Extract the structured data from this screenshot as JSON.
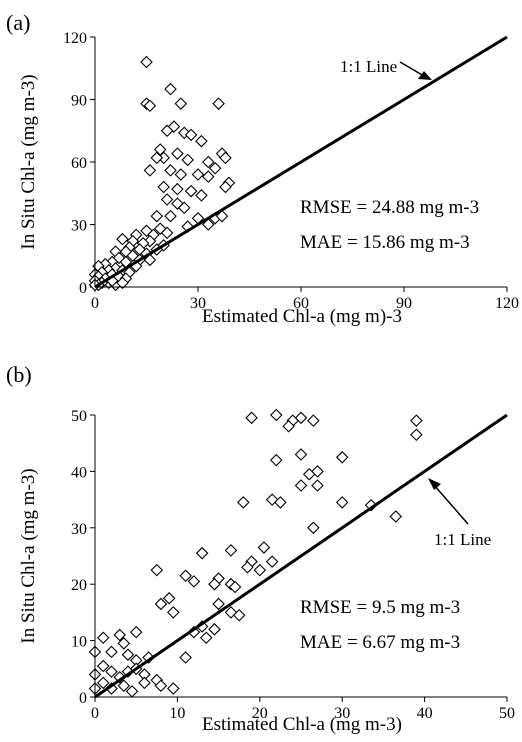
{
  "chart_data": [
    {
      "type": "scatter",
      "panel_label": "(a)",
      "xlabel": "Estimated Chl-a (mg m)-3",
      "ylabel": "In Situ Chl-a (mg m-3)",
      "xlim": [
        0,
        120
      ],
      "ylim": [
        0,
        120
      ],
      "xticks": [
        "0",
        "30",
        "60",
        "90",
        "120"
      ],
      "yticks": [
        "0",
        "30",
        "60",
        "90",
        "120"
      ],
      "grid": false,
      "reference_line": {
        "label": "1:1 Line",
        "from": [
          0,
          0
        ],
        "to": [
          120,
          120
        ]
      },
      "annotations": [
        "RMSE = 24.88 mg m-3",
        "MAE = 15.86 mg m-3"
      ],
      "marker": "diamond",
      "points": [
        [
          15,
          108
        ],
        [
          22,
          95
        ],
        [
          15,
          88
        ],
        [
          16,
          87
        ],
        [
          25,
          88
        ],
        [
          36,
          88
        ],
        [
          23,
          77
        ],
        [
          21,
          75
        ],
        [
          26,
          74
        ],
        [
          28,
          73
        ],
        [
          31,
          70
        ],
        [
          19,
          66
        ],
        [
          24,
          64
        ],
        [
          20,
          62
        ],
        [
          18,
          62
        ],
        [
          27,
          61
        ],
        [
          33,
          60
        ],
        [
          37,
          64
        ],
        [
          38,
          62
        ],
        [
          35,
          57
        ],
        [
          16,
          56
        ],
        [
          22,
          56
        ],
        [
          25,
          54
        ],
        [
          30,
          54
        ],
        [
          33,
          53
        ],
        [
          39,
          50
        ],
        [
          38,
          48
        ],
        [
          20,
          48
        ],
        [
          24,
          47
        ],
        [
          28,
          46
        ],
        [
          31,
          44
        ],
        [
          21,
          42
        ],
        [
          24,
          40
        ],
        [
          26,
          38
        ],
        [
          35,
          33
        ],
        [
          37,
          34
        ],
        [
          18,
          34
        ],
        [
          22,
          34
        ],
        [
          30,
          33
        ],
        [
          27,
          29
        ],
        [
          33,
          30
        ],
        [
          19,
          28
        ],
        [
          15,
          27
        ],
        [
          21,
          26
        ],
        [
          12,
          25
        ],
        [
          17,
          25
        ],
        [
          8,
          23
        ],
        [
          11,
          22
        ],
        [
          16,
          22
        ],
        [
          14,
          21
        ],
        [
          20,
          20
        ],
        [
          10,
          19
        ],
        [
          13,
          18
        ],
        [
          9,
          17
        ],
        [
          6,
          17
        ],
        [
          18,
          18
        ],
        [
          15,
          16
        ],
        [
          11,
          15
        ],
        [
          7,
          14
        ],
        [
          13,
          13
        ],
        [
          16,
          13
        ],
        [
          5,
          12
        ],
        [
          9,
          12
        ],
        [
          3,
          11
        ],
        [
          1,
          10
        ],
        [
          12,
          10
        ],
        [
          6,
          9
        ],
        [
          8,
          8
        ],
        [
          4,
          8
        ],
        [
          10,
          7
        ],
        [
          2,
          7
        ],
        [
          5,
          6
        ],
        [
          0,
          6
        ],
        [
          7,
          5
        ],
        [
          1,
          5
        ],
        [
          3,
          4
        ],
        [
          9,
          4
        ],
        [
          0,
          3
        ],
        [
          4,
          2
        ],
        [
          2,
          2
        ],
        [
          6,
          1
        ],
        [
          1,
          1
        ],
        [
          0,
          1
        ],
        [
          5,
          3
        ],
        [
          8,
          2
        ]
      ]
    },
    {
      "type": "scatter",
      "panel_label": "(b)",
      "xlabel": "Estimated Chl-a (mg m-3)",
      "ylabel": "In Situ Chl-a (mg m-3)",
      "xlim": [
        0,
        50
      ],
      "ylim": [
        0,
        50
      ],
      "xticks": [
        "0",
        "10",
        "20",
        "30",
        "40",
        "50"
      ],
      "yticks": [
        "0",
        "10",
        "20",
        "30",
        "40",
        "50"
      ],
      "grid": false,
      "reference_line": {
        "label": "1:1 Line",
        "from": [
          0,
          0
        ],
        "to": [
          50,
          50
        ]
      },
      "annotations": [
        "RMSE = 9.5 mg m-3",
        "MAE = 6.67 mg m-3"
      ],
      "marker": "diamond",
      "points": [
        [
          19,
          49.5
        ],
        [
          22,
          50
        ],
        [
          24,
          49
        ],
        [
          25,
          49.5
        ],
        [
          26.5,
          49
        ],
        [
          39,
          49
        ],
        [
          39,
          46.5
        ],
        [
          23.5,
          48
        ],
        [
          25,
          43
        ],
        [
          22,
          42
        ],
        [
          30,
          42.5
        ],
        [
          26,
          39.5
        ],
        [
          27,
          40
        ],
        [
          25,
          37.5
        ],
        [
          27,
          37.5
        ],
        [
          21.5,
          35
        ],
        [
          22.5,
          34.5
        ],
        [
          18,
          34.5
        ],
        [
          30,
          34.5
        ],
        [
          33.5,
          34
        ],
        [
          36.5,
          32
        ],
        [
          26.5,
          30
        ],
        [
          20.5,
          26.5
        ],
        [
          16.5,
          26
        ],
        [
          13,
          25.5
        ],
        [
          19,
          24
        ],
        [
          21.5,
          24
        ],
        [
          18.5,
          23
        ],
        [
          20,
          22.5
        ],
        [
          7.5,
          22.5
        ],
        [
          11,
          21.5
        ],
        [
          15,
          21
        ],
        [
          12,
          20.5
        ],
        [
          14.5,
          20
        ],
        [
          16.5,
          20
        ],
        [
          17,
          19.5
        ],
        [
          9,
          17.5
        ],
        [
          8,
          16.5
        ],
        [
          15,
          16.5
        ],
        [
          16.5,
          15
        ],
        [
          17.5,
          14.5
        ],
        [
          9.5,
          15
        ],
        [
          13,
          12.5
        ],
        [
          14.5,
          12
        ],
        [
          12,
          11.5
        ],
        [
          13.5,
          10.5
        ],
        [
          5,
          11.5
        ],
        [
          3,
          11
        ],
        [
          1,
          10.5
        ],
        [
          3.5,
          9.5
        ],
        [
          0,
          8
        ],
        [
          2,
          8
        ],
        [
          4,
          7.5
        ],
        [
          6.5,
          7
        ],
        [
          11,
          7
        ],
        [
          5,
          6.5
        ],
        [
          1,
          5.5
        ],
        [
          2,
          4.5
        ],
        [
          0,
          4
        ],
        [
          4,
          4.5
        ],
        [
          6,
          4
        ],
        [
          3,
          3.5
        ],
        [
          7.5,
          3
        ],
        [
          8,
          2
        ],
        [
          3.5,
          2
        ],
        [
          0,
          1.5
        ],
        [
          2,
          1.5
        ],
        [
          9.5,
          1.5
        ],
        [
          4.5,
          1
        ],
        [
          6,
          2.5
        ],
        [
          1,
          2.5
        ],
        [
          5,
          5
        ]
      ]
    }
  ]
}
